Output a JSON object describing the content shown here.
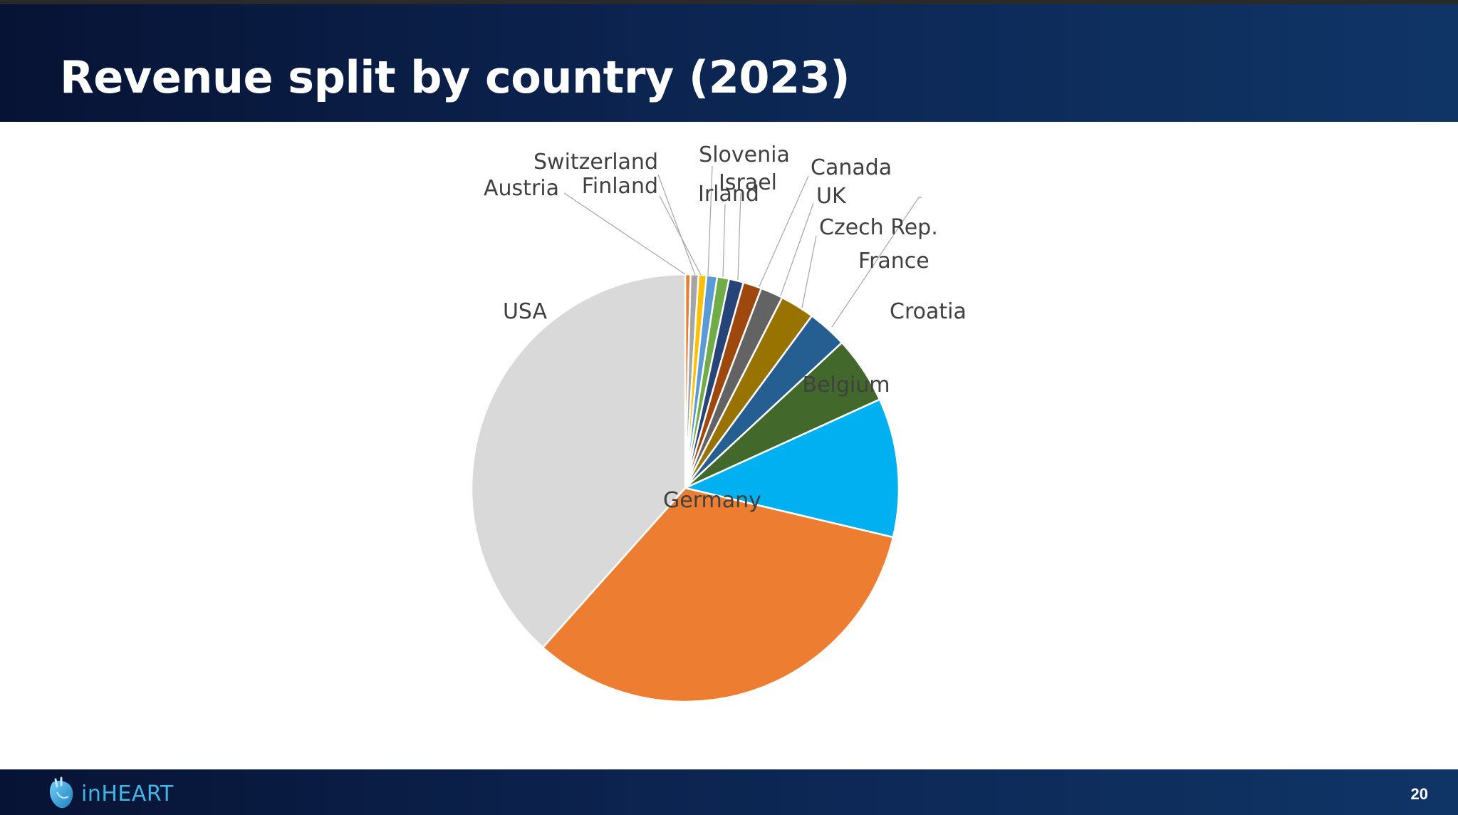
{
  "slide": {
    "title": "Revenue split by country (2023)",
    "page_number": "20"
  },
  "logo": {
    "text": "inHEART",
    "icon": "heart-logo-icon"
  },
  "colors": {
    "header_bg": "#0c2450",
    "logo_text": "#3fb6e8",
    "label_text": "#404040",
    "leader_line": "#a6a6a6"
  },
  "chart_data": {
    "type": "pie",
    "title": "",
    "start_angle_deg": 0,
    "direction": "clockwise",
    "units": "percent (estimated)",
    "slices": [
      {
        "name": "Austria",
        "value": 0.4,
        "color": "#ed7d31"
      },
      {
        "name": "Switzerland",
        "value": 0.6,
        "color": "#a5a5a5"
      },
      {
        "name": "Finland",
        "value": 0.6,
        "color": "#ffc000"
      },
      {
        "name": "Slovenia",
        "value": 0.8,
        "color": "#5b9bd5"
      },
      {
        "name": "Irland",
        "value": 0.9,
        "color": "#70ad47"
      },
      {
        "name": "Israel",
        "value": 1.1,
        "color": "#264478"
      },
      {
        "name": "Canada",
        "value": 1.4,
        "color": "#9e480e"
      },
      {
        "name": "UK",
        "value": 1.7,
        "color": "#636363"
      },
      {
        "name": "Czech Rep.",
        "value": 2.6,
        "color": "#997300"
      },
      {
        "name": "France",
        "value": 3.0,
        "color": "#255e91"
      },
      {
        "name": "Croatia",
        "value": 5.1,
        "color": "#43682b"
      },
      {
        "name": "Belgium",
        "value": 10.5,
        "color": "#00b0f0"
      },
      {
        "name": "Germany",
        "value": 32.9,
        "color": "#ed7d31"
      },
      {
        "name": "USA",
        "value": 38.4,
        "color": "#d9d9d9"
      }
    ],
    "legend": "none",
    "labels": "category names, outside with leader lines for small slices"
  }
}
